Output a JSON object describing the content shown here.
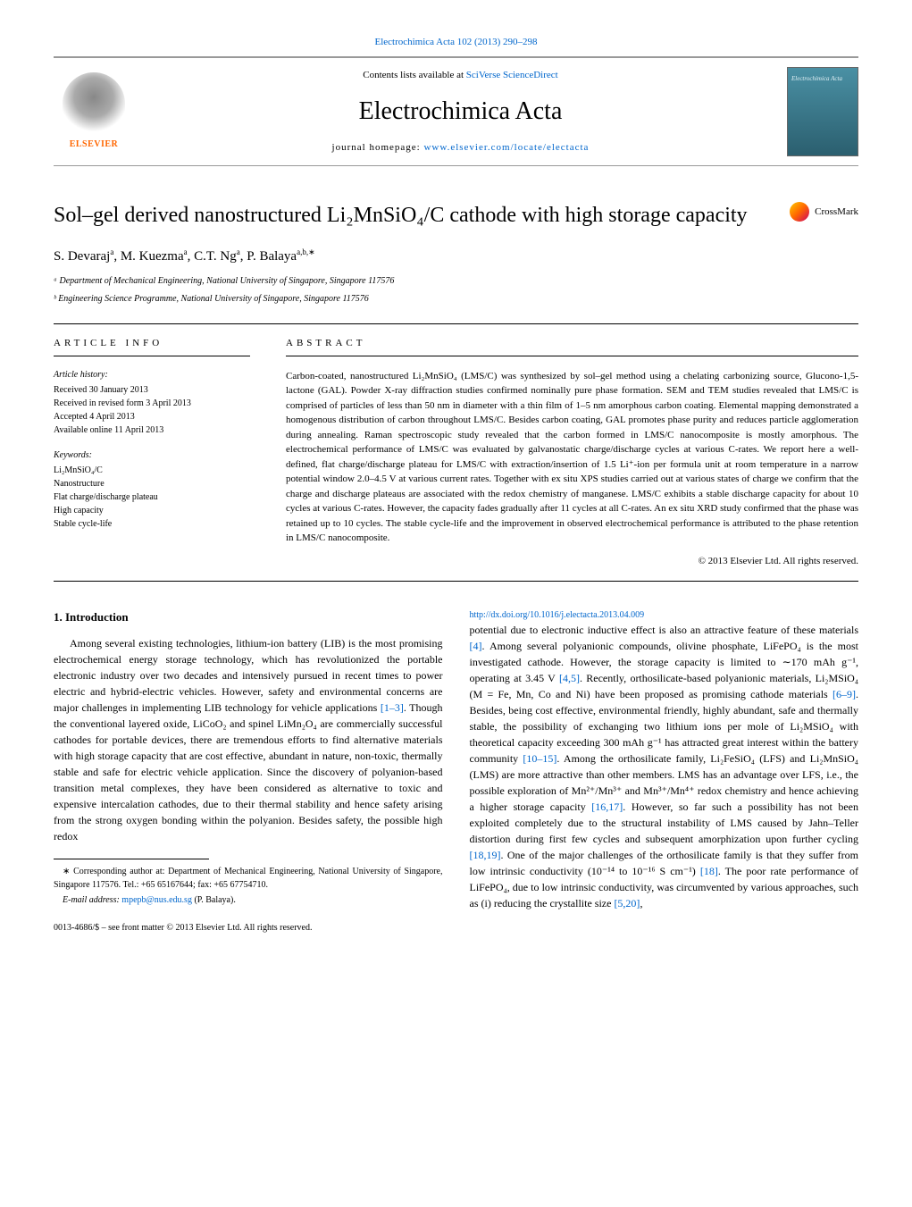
{
  "header": {
    "citation_link": "Electrochimica Acta 102 (2013) 290–298",
    "contents_text": "Contents lists available at ",
    "sd_link": "SciVerse ScienceDirect",
    "journal_name": "Electrochimica Acta",
    "homepage_prefix": "journal homepage: ",
    "homepage_url": "www.elsevier.com/locate/electacta",
    "elsevier_label": "ELSEVIER",
    "cover_title": "Electrochimica Acta"
  },
  "crossmark_label": "CrossMark",
  "article": {
    "title": "Sol–gel derived nanostructured Li₂MnSiO₄/C cathode with high storage capacity",
    "authors_text": "S. Devaraj",
    "author_sup_a": "a",
    "author2": ", M. Kuezma",
    "author2_sup": "a",
    "author3": ", C.T. Ng",
    "author3_sup": "a",
    "author4": ", P. Balaya",
    "author4_sup": "a,b,∗",
    "affil_a": "ᵃ Department of Mechanical Engineering, National University of Singapore, Singapore 117576",
    "affil_b": "ᵇ Engineering Science Programme, National University of Singapore, Singapore 117576"
  },
  "info": {
    "label": "article info",
    "history_title": "Article history:",
    "history_l1": "Received 30 January 2013",
    "history_l2": "Received in revised form 3 April 2013",
    "history_l3": "Accepted 4 April 2013",
    "history_l4": "Available online 11 April 2013",
    "keywords_title": "Keywords:",
    "kw1": "Li₂MnSiO₄/C",
    "kw2": "Nanostructure",
    "kw3": "Flat charge/discharge plateau",
    "kw4": "High capacity",
    "kw5": "Stable cycle-life"
  },
  "abstract": {
    "label": "abstract",
    "text": "Carbon-coated, nanostructured Li₂MnSiO₄ (LMS/C) was synthesized by sol–gel method using a chelating carbonizing source, Glucono-1,5-lactone (GAL). Powder X-ray diffraction studies confirmed nominally pure phase formation. SEM and TEM studies revealed that LMS/C is comprised of particles of less than 50 nm in diameter with a thin film of 1–5 nm amorphous carbon coating. Elemental mapping demonstrated a homogenous distribution of carbon throughout LMS/C. Besides carbon coating, GAL promotes phase purity and reduces particle agglomeration during annealing. Raman spectroscopic study revealed that the carbon formed in LMS/C nanocomposite is mostly amorphous. The electrochemical performance of LMS/C was evaluated by galvanostatic charge/discharge cycles at various C-rates. We report here a well-defined, flat charge/discharge plateau for LMS/C with extraction/insertion of 1.5 Li⁺-ion per formula unit at room temperature in a narrow potential window 2.0–4.5 V at various current rates. Together with ex situ XPS studies carried out at various states of charge we confirm that the charge and discharge plateaus are associated with the redox chemistry of manganese. LMS/C exhibits a stable discharge capacity for about 10 cycles at various C-rates. However, the capacity fades gradually after 11 cycles at all C-rates. An ex situ XRD study confirmed that the phase was retained up to 10 cycles. The stable cycle-life and the improvement in observed electrochemical performance is attributed to the phase retention in LMS/C nanocomposite.",
    "copyright": "© 2013 Elsevier Ltd. All rights reserved."
  },
  "body": {
    "intro_heading": "1. Introduction",
    "para1_a": "Among several existing technologies, lithium-ion battery (LIB) is the most promising electrochemical energy storage technology, which has revolutionized the portable electronic industry over two decades and intensively pursued in recent times to power electric and hybrid-electric vehicles. However, safety and environmental concerns are major challenges in implementing LIB technology for vehicle applications ",
    "ref1": "[1–3]",
    "para1_b": ". Though the conventional layered oxide, LiCoO₂ and spinel LiMn₂O₄ are commercially successful cathodes for portable devices, there are tremendous efforts to find alternative materials with high storage capacity that are cost effective, abundant in nature, non-toxic, thermally stable and safe for electric vehicle application. Since the discovery of polyanion-based transition metal complexes, they have been considered as alternative to toxic and expensive intercalation cathodes, due to their thermal stability and hence safety arising from the strong oxygen bonding within the polyanion. Besides safety, the possible high redox",
    "para2_a": "potential due to electronic inductive effect is also an attractive feature of these materials ",
    "ref4": "[4]",
    "para2_b": ". Among several polyanionic compounds, olivine phosphate, LiFePO₄ is the most investigated cathode. However, the storage capacity is limited to ∼170 mAh g⁻¹, operating at 3.45 V ",
    "ref45": "[4,5]",
    "para2_c": ". Recently, orthosilicate-based polyanionic materials, Li₂MSiO₄ (M = Fe, Mn, Co and Ni) have been proposed as promising cathode materials ",
    "ref69": "[6–9]",
    "para2_d": ". Besides, being cost effective, environmental friendly, highly abundant, safe and thermally stable, the possibility of exchanging two lithium ions per mole of Li₂MSiO₄ with theoretical capacity exceeding 300 mAh g⁻¹ has attracted great interest within the battery community ",
    "ref1015": "[10–15]",
    "para2_e": ". Among the orthosilicate family, Li₂FeSiO₄ (LFS) and Li₂MnSiO₄ (LMS) are more attractive than other members. LMS has an advantage over LFS, i.e., the possible exploration of Mn²⁺/Mn³⁺ and Mn³⁺/Mn⁴⁺ redox chemistry and hence achieving a higher storage capacity ",
    "ref1617": "[16,17]",
    "para2_f": ". However, so far such a possibility has not been exploited completely due to the structural instability of LMS caused by Jahn–Teller distortion during first few cycles and subsequent amorphization upon further cycling ",
    "ref1819": "[18,19]",
    "para2_g": ". One of the major challenges of the orthosilicate family is that they suffer from low intrinsic conductivity (10⁻¹⁴ to 10⁻¹⁶ S cm⁻¹) ",
    "ref18": "[18]",
    "para2_h": ". The poor rate performance of LiFePO₄, due to low intrinsic conductivity, was circumvented by various approaches, such as (i) reducing the crystallite size ",
    "ref520": "[5,20]",
    "para2_i": ","
  },
  "footnotes": {
    "corr": "∗ Corresponding author at: Department of Mechanical Engineering, National University of Singapore, Singapore 117576. Tel.: +65 65167644; fax: +65 67754710.",
    "email_label": "E-mail address: ",
    "email": "mpepb@nus.edu.sg",
    "email_suffix": " (P. Balaya).",
    "issn": "0013-4686/$ – see front matter © 2013 Elsevier Ltd. All rights reserved.",
    "doi": "http://dx.doi.org/10.1016/j.electacta.2013.04.009"
  },
  "colors": {
    "link": "#0066cc",
    "elsevier_orange": "#ff6600",
    "cover_bg_top": "#4a90a4",
    "cover_bg_bottom": "#2b5f6f"
  }
}
